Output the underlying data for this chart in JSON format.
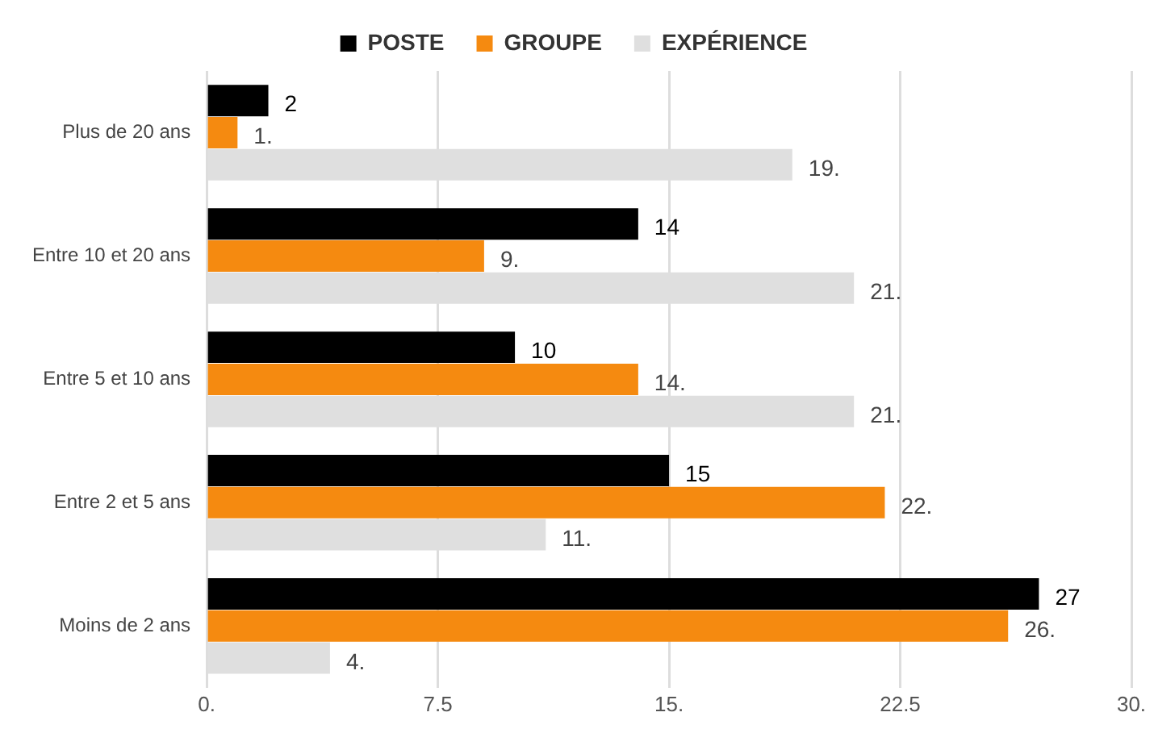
{
  "chart_data": {
    "type": "bar",
    "orientation": "horizontal",
    "categories": [
      "Plus de 20 ans",
      "Entre 10 et 20 ans",
      "Entre 5 et 10 ans",
      "Entre 2 et 5 ans",
      "Moins de 2 ans"
    ],
    "series": [
      {
        "name": "POSTE",
        "color": "#000000",
        "values": [
          2,
          14,
          10,
          15,
          27
        ],
        "value_labels": [
          "2",
          "14",
          "10",
          "15",
          "27"
        ]
      },
      {
        "name": "GROUPE",
        "color": "#f58a10",
        "values": [
          1,
          9,
          14,
          22,
          26
        ],
        "value_labels": [
          "1.",
          "9.",
          "14.",
          "22.",
          "26."
        ]
      },
      {
        "name": "EXPÉRIENCE",
        "color": "#dfdfdf",
        "values": [
          19,
          21,
          21,
          11,
          4
        ],
        "value_labels": [
          "19.",
          "21.",
          "21.",
          "11.",
          "4."
        ]
      }
    ],
    "xlim": [
      0,
      30
    ],
    "xticks": [
      {
        "value": 0,
        "label": "0."
      },
      7.5,
      {
        "value": 15,
        "label": "15."
      },
      22.5,
      {
        "value": 30,
        "label": "30."
      }
    ],
    "grid": "x",
    "legend": "top"
  }
}
